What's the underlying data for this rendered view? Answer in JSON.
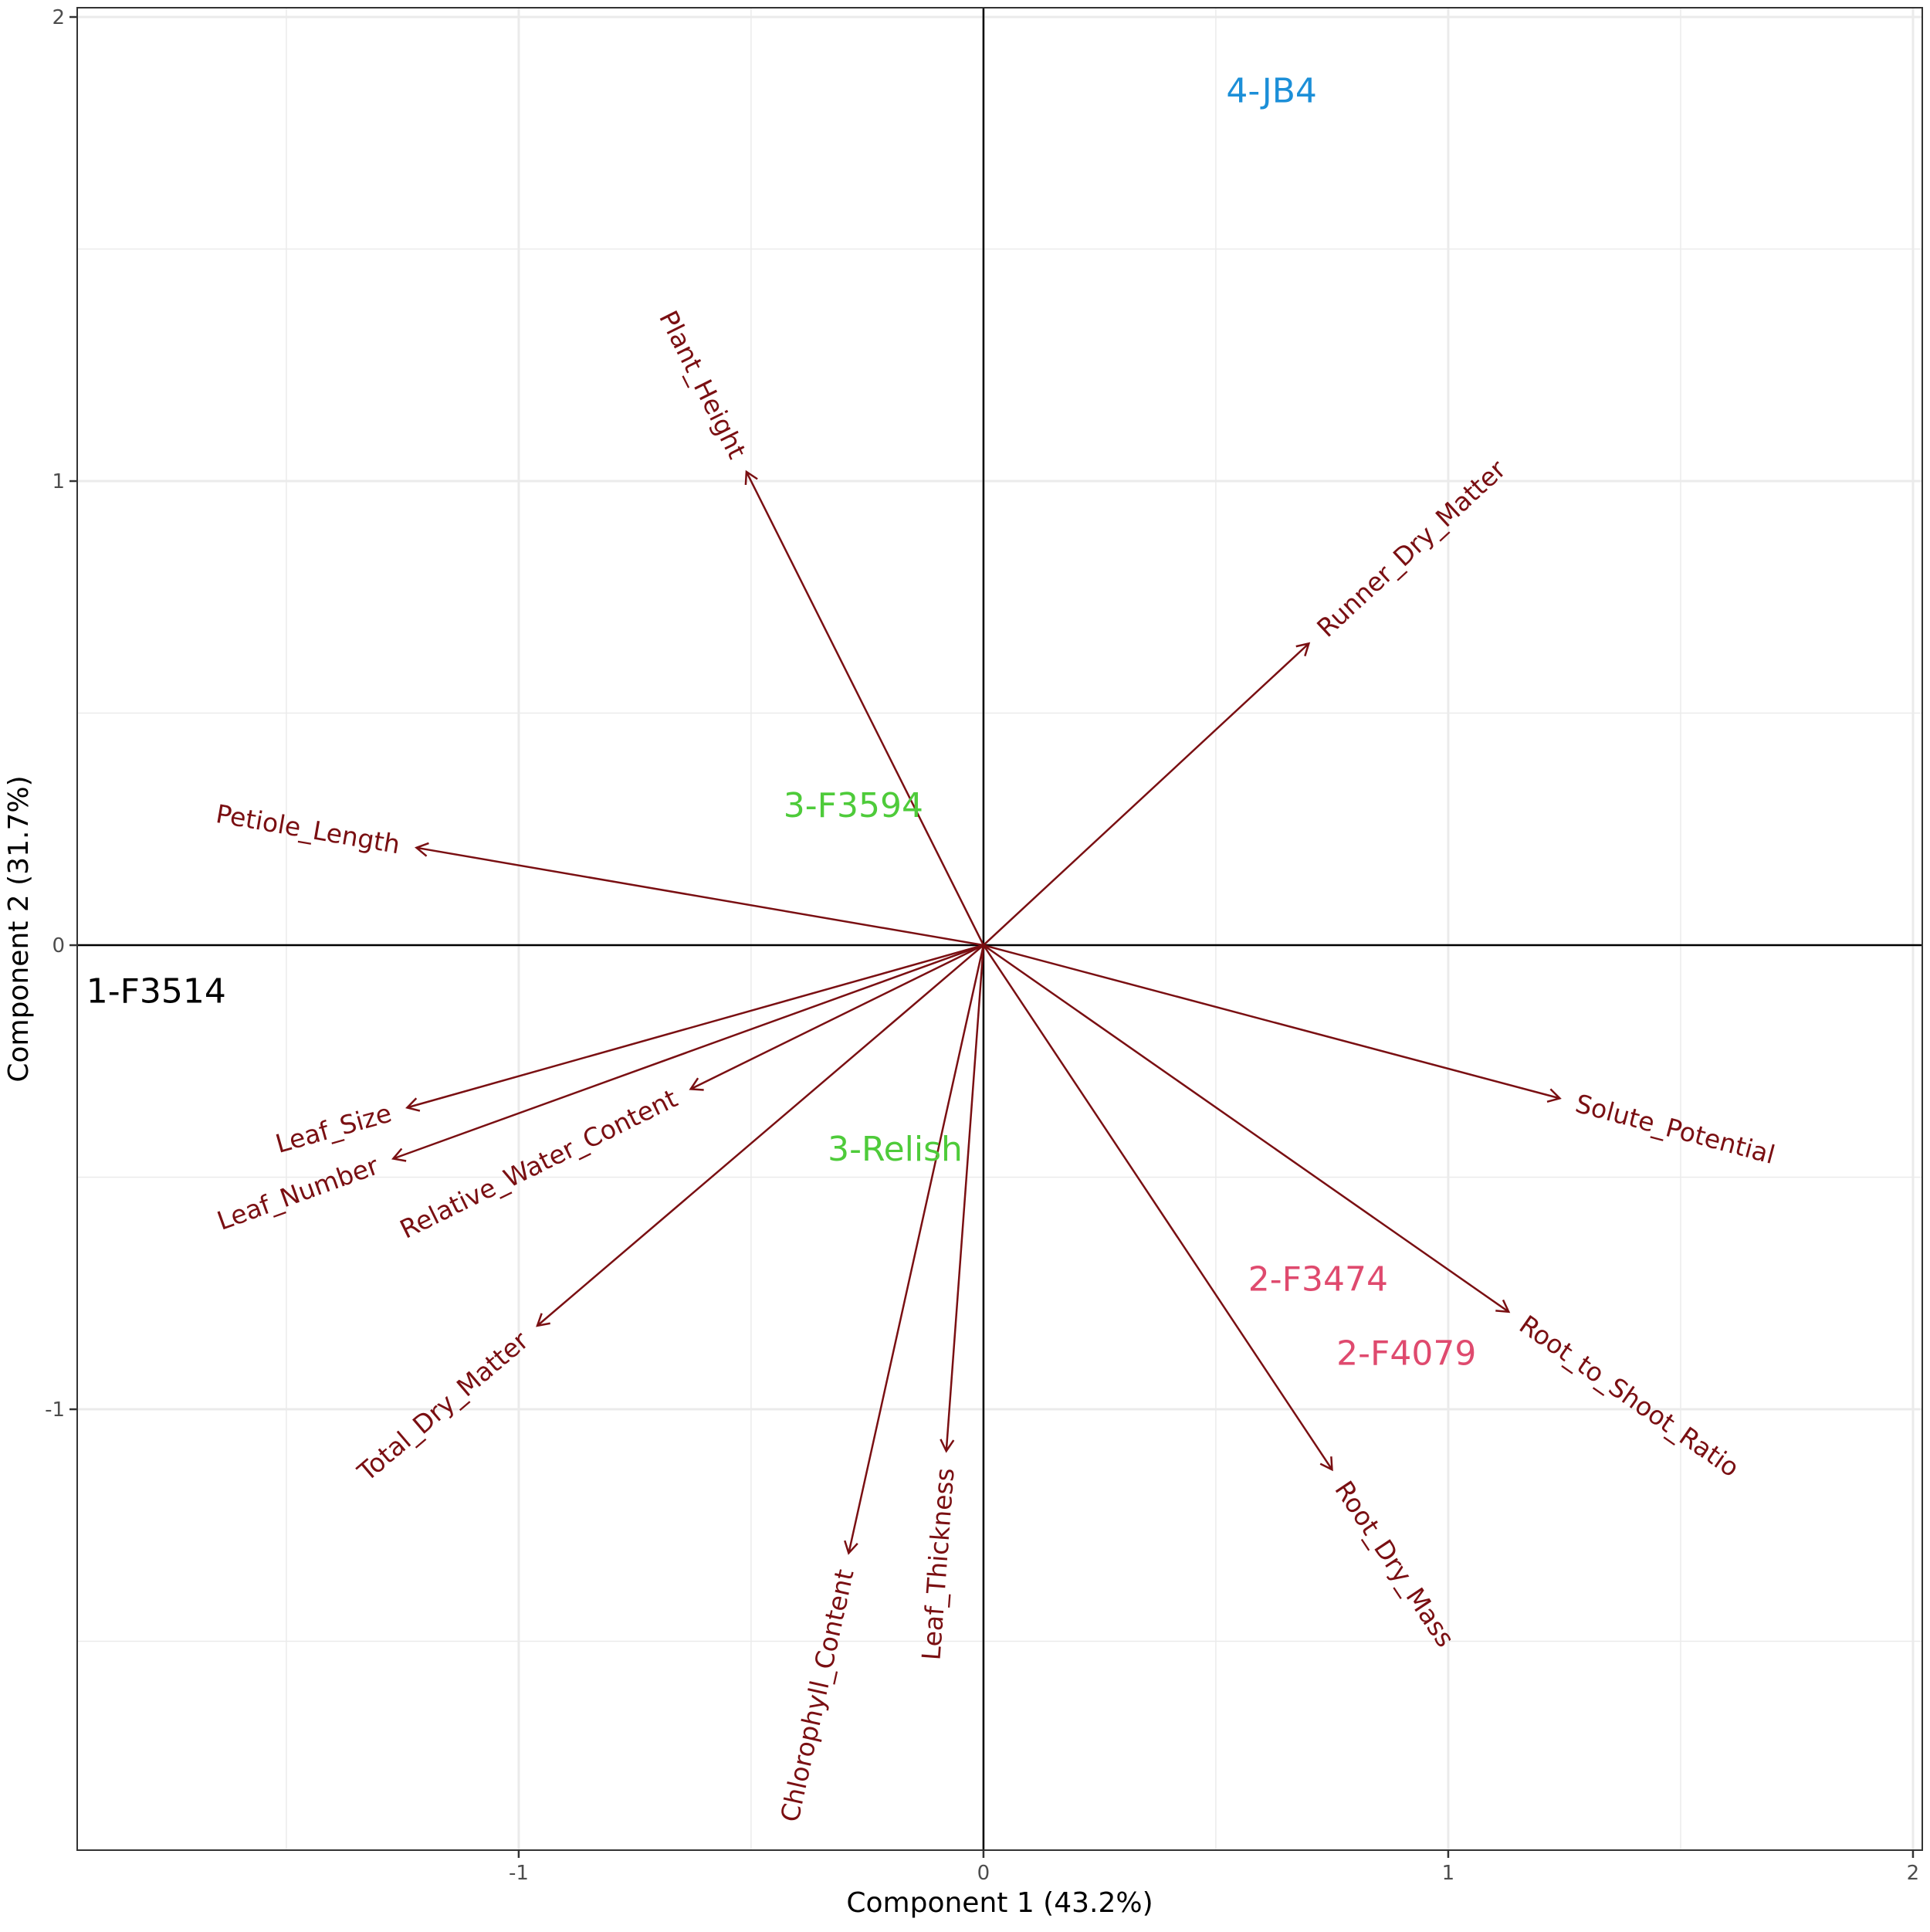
{
  "chart_data": {
    "type": "scatter",
    "subtype": "pca-biplot",
    "xlabel": "Component 1 (43.2%)",
    "ylabel": "Component 2 (31.7%)",
    "xlim": [
      -1.95,
      2.02
    ],
    "ylim": [
      -1.95,
      2.02
    ],
    "x_ticks": [
      {
        "value": -1,
        "label": "-1"
      },
      {
        "value": 0,
        "label": "0"
      },
      {
        "value": 1,
        "label": "1"
      },
      {
        "value": 2,
        "label": "2"
      }
    ],
    "y_ticks": [
      {
        "value": -1,
        "label": "-1"
      },
      {
        "value": 0,
        "label": "0"
      },
      {
        "value": 1,
        "label": "1"
      },
      {
        "value": 2,
        "label": "2"
      }
    ],
    "grid": true,
    "zero_lines": true,
    "loading_color": "#7a0f12",
    "loadings": [
      {
        "name": "Plant_Height",
        "x": -0.51,
        "y": 1.02
      },
      {
        "name": "Runner_Dry_Matter",
        "x": 0.7,
        "y": 0.65
      },
      {
        "name": "Petiole_Length",
        "x": -1.22,
        "y": 0.21
      },
      {
        "name": "Solute_Potential",
        "x": 1.24,
        "y": -0.33
      },
      {
        "name": "Leaf_Size",
        "x": -1.24,
        "y": -0.35
      },
      {
        "name": "Leaf_Number",
        "x": -1.27,
        "y": -0.46
      },
      {
        "name": "Relative_Water_Content",
        "x": -0.63,
        "y": -0.31
      },
      {
        "name": "Total_Dry_Matter",
        "x": -0.96,
        "y": -0.82
      },
      {
        "name": "Chlorophyll_Content",
        "x": -0.29,
        "y": -1.31
      },
      {
        "name": "Leaf_Thickness",
        "x": -0.08,
        "y": -1.09
      },
      {
        "name": "Root_Dry_Mass",
        "x": 0.75,
        "y": -1.13
      },
      {
        "name": "Root_to_Shoot_Ratio",
        "x": 1.13,
        "y": -0.79
      }
    ],
    "samples": [
      {
        "name": "4-JB4",
        "x": 0.62,
        "y": 1.84,
        "color": "#1c8fd8"
      },
      {
        "name": "3-F3594",
        "x": -0.28,
        "y": 0.3,
        "color": "#4ecb3a"
      },
      {
        "name": "1-F3514",
        "x": -1.78,
        "y": -0.1,
        "color": "#000000"
      },
      {
        "name": "3-Relish",
        "x": -0.19,
        "y": -0.44,
        "color": "#4ecb3a"
      },
      {
        "name": "2-F3474",
        "x": 0.72,
        "y": -0.72,
        "color": "#df4a6e"
      },
      {
        "name": "2-F4079",
        "x": 0.91,
        "y": -0.88,
        "color": "#df4a6e"
      }
    ]
  }
}
